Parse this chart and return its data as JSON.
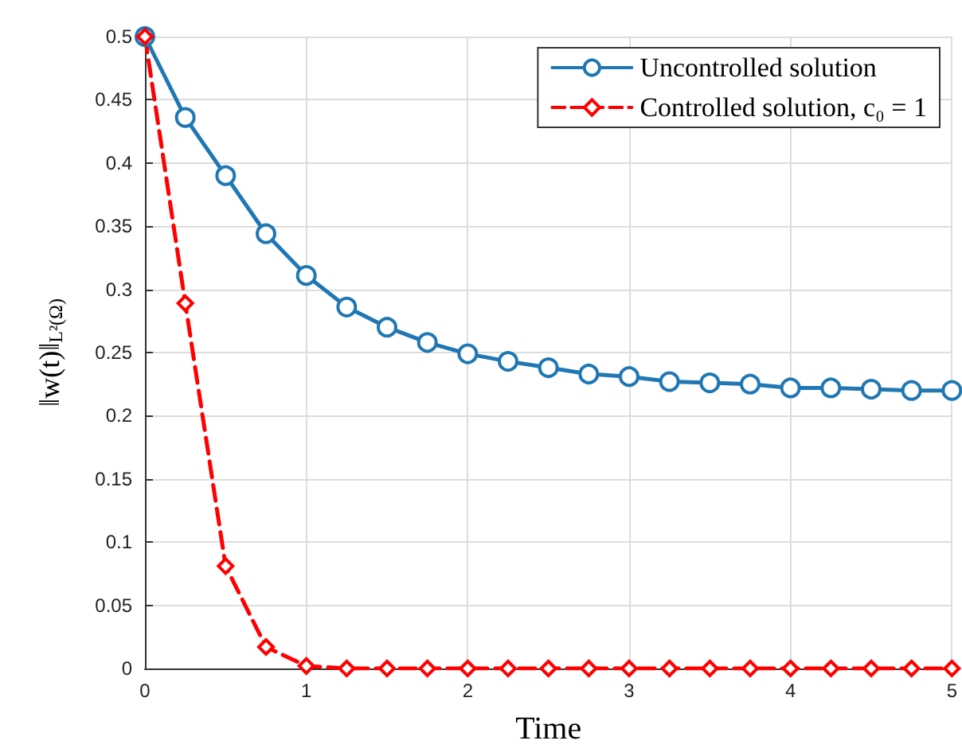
{
  "chart_data": {
    "type": "line",
    "xlabel": "Time",
    "ylabel": "‖w(t)‖$_{L²(Ω)}$",
    "x": [
      0,
      0.25,
      0.5,
      0.75,
      1,
      1.25,
      1.5,
      1.75,
      2,
      2.25,
      2.5,
      2.75,
      3,
      3.25,
      3.5,
      3.75,
      4,
      4.25,
      4.5,
      4.75,
      5
    ],
    "series": [
      {
        "name": "Uncontrolled solution",
        "color": "#1f77b4",
        "marker": "circle",
        "line_style": "solid",
        "values": [
          0.5,
          0.436,
          0.39,
          0.344,
          0.311,
          0.286,
          0.27,
          0.258,
          0.249,
          0.243,
          0.238,
          0.233,
          0.231,
          0.227,
          0.226,
          0.225,
          0.222,
          0.222,
          0.221,
          0.22,
          0.22
        ]
      },
      {
        "name": "Controlled solution, c₀ = 1",
        "color": "#ff0000",
        "marker": "diamond",
        "line_style": "dashed",
        "values": [
          0.5,
          0.289,
          0.081,
          0.017,
          0.002,
          0,
          0,
          0,
          0,
          0,
          0,
          0,
          0,
          0,
          0,
          0,
          0,
          0,
          0,
          0,
          0
        ]
      }
    ],
    "xlim": [
      0,
      5
    ],
    "xticks": [
      0,
      1,
      2,
      3,
      4,
      5
    ],
    "ylim": [
      0,
      0.5
    ],
    "yticks": [
      0,
      0.05,
      0.1,
      0.15,
      0.2,
      0.25,
      0.3,
      0.35,
      0.4,
      0.45,
      0.5
    ],
    "grid": true,
    "legend": "top right"
  }
}
